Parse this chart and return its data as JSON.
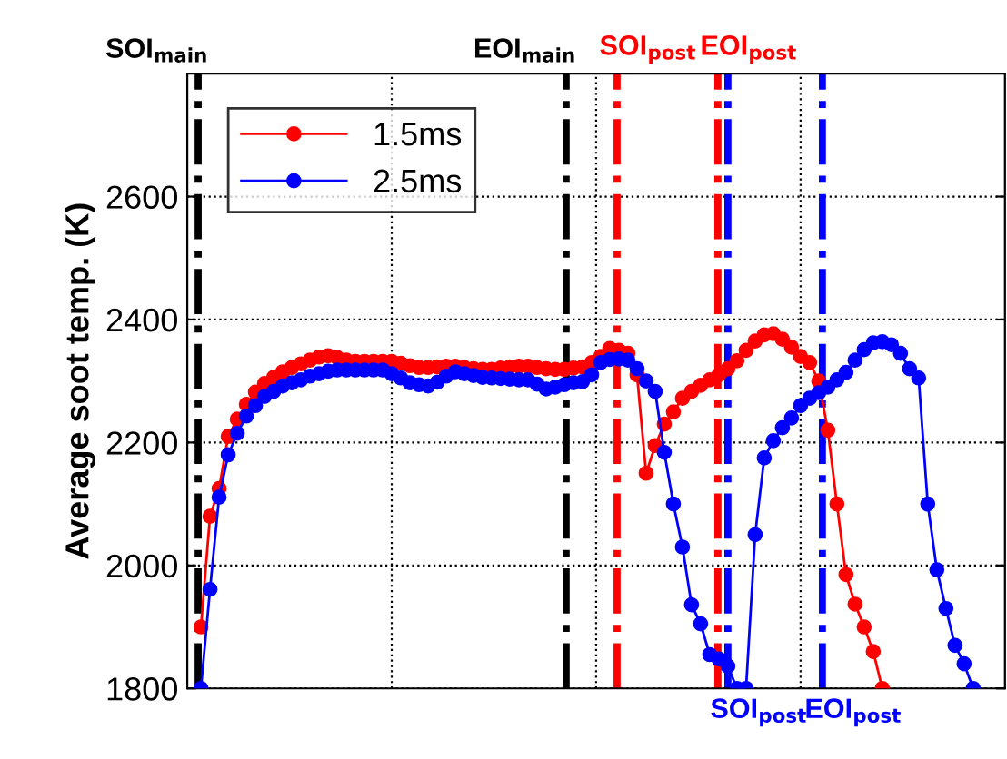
{
  "chart_data": {
    "type": "line",
    "ylabel": "Average soot temp. (K)",
    "categories": [
      null,
      null,
      null,
      null,
      null,
      null,
      null,
      null,
      null,
      null,
      null,
      null,
      null,
      null,
      null,
      null,
      null,
      null,
      null,
      null,
      null,
      null,
      null,
      null,
      null,
      null,
      null,
      null,
      null,
      null,
      null,
      null,
      null,
      null,
      null,
      null,
      null,
      null,
      null,
      null,
      null,
      null,
      null,
      null,
      null,
      null,
      null,
      null,
      null,
      null,
      null,
      null,
      null,
      null,
      null,
      null,
      null,
      null,
      null,
      null,
      null,
      null,
      null,
      null,
      null,
      null,
      null,
      null,
      null,
      null,
      null,
      null,
      null,
      null,
      null,
      null,
      null,
      null,
      null,
      null,
      null,
      null,
      null,
      null,
      null,
      null,
      null,
      null,
      null,
      null
    ],
    "ylim": [
      1800,
      2800
    ],
    "yticks": [
      1800,
      2000,
      2200,
      2400,
      2600
    ],
    "grid": true,
    "legend": "top left",
    "marker": "circle",
    "line_style": "solid",
    "series": [
      {
        "name": "1.5ms",
        "color": "#ff0000",
        "values": [
          null,
          1900,
          2080,
          2125,
          2210,
          2238,
          2262,
          2282,
          2296,
          2306,
          2315,
          2322,
          2328,
          2334,
          2339,
          2341,
          2338,
          2334,
          2332,
          2332,
          2332,
          2332,
          2332,
          2329,
          2325,
          2322,
          2322,
          2323,
          2324,
          2324,
          2322,
          2320,
          2319,
          2319,
          2321,
          2323,
          2324,
          2324,
          2322,
          2320,
          2319,
          2319,
          2321,
          2323,
          2330,
          2340,
          2353,
          2350,
          2345,
          2310,
          2150,
          2195,
          2230,
          2250,
          2272,
          2283,
          2293,
          2302,
          2310,
          2320,
          2333,
          2350,
          2365,
          2375,
          2377,
          2368,
          2355,
          2340,
          2330,
          2300,
          2220,
          2100,
          1985,
          1937,
          1900,
          1860,
          1800,
          null,
          null,
          null,
          null,
          null,
          null,
          null,
          null,
          null,
          null,
          null,
          null,
          null
        ]
      },
      {
        "name": "2.5ms",
        "color": "#0000ff",
        "values": [
          null,
          1800,
          1961,
          2111,
          2180,
          2215,
          2243,
          2260,
          2275,
          2283,
          2292,
          2297,
          2302,
          2308,
          2312,
          2316,
          2318,
          2318,
          2318,
          2318,
          2318,
          2318,
          2312,
          2305,
          2297,
          2294,
          2292,
          2298,
          2308,
          2315,
          2312,
          2309,
          2306,
          2305,
          2304,
          2303,
          2302,
          2302,
          2295,
          2287,
          2290,
          2294,
          2297,
          2299,
          2310,
          2330,
          2335,
          2336,
          2334,
          2320,
          2300,
          2283,
          2184,
          2100,
          2030,
          1936,
          1905,
          1855,
          1848,
          1836,
          1800,
          1800,
          2050,
          2175,
          2203,
          2224,
          2240,
          2260,
          2272,
          2281,
          2290,
          2302,
          2314,
          2334,
          2351,
          2362,
          2364,
          2359,
          2345,
          2320,
          2305,
          2100,
          1993,
          1930,
          1870,
          1840,
          1800,
          null,
          null,
          null
        ]
      }
    ],
    "annotations": [
      "SOI$_{main}$",
      "EOI$_{main}$",
      "SOI$_{post}$",
      "EOI$_{post}$",
      "SOI$_{post}$",
      "EOI$_{post}$"
    ]
  }
}
